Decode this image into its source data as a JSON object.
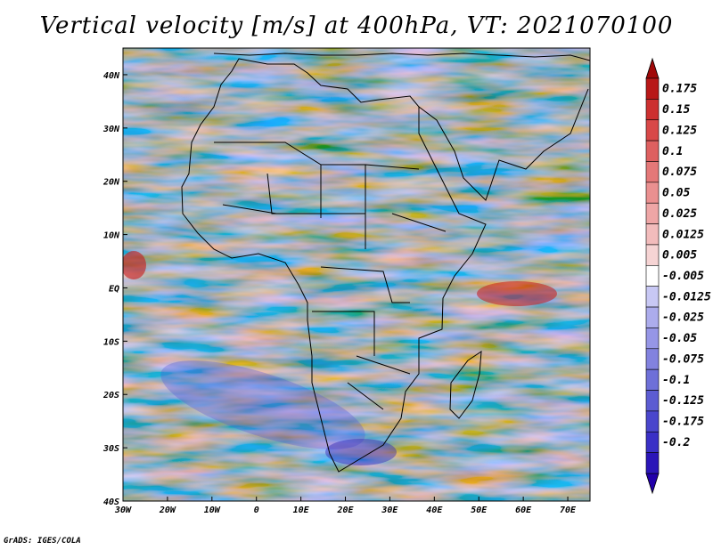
{
  "title": "Vertical velocity [m/s] at 400hPa, VT: 2021070100",
  "credit": "GrADS: IGES/COLA",
  "map": {
    "lon_range": [
      -30,
      75
    ],
    "lat_range": [
      -40,
      45
    ],
    "lon_ticks": [
      {
        "value": -30,
        "label": "30W"
      },
      {
        "value": -20,
        "label": "20W"
      },
      {
        "value": -10,
        "label": "10W"
      },
      {
        "value": 0,
        "label": "0"
      },
      {
        "value": 10,
        "label": "10E"
      },
      {
        "value": 20,
        "label": "20E"
      },
      {
        "value": 30,
        "label": "30E"
      },
      {
        "value": 40,
        "label": "40E"
      },
      {
        "value": 50,
        "label": "50E"
      },
      {
        "value": 60,
        "label": "60E"
      },
      {
        "value": 70,
        "label": "70E"
      }
    ],
    "lat_ticks": [
      {
        "value": 40,
        "label": "40N"
      },
      {
        "value": 30,
        "label": "30N"
      },
      {
        "value": 20,
        "label": "20N"
      },
      {
        "value": 10,
        "label": "10N"
      },
      {
        "value": 0,
        "label": "EQ"
      },
      {
        "value": -10,
        "label": "10S"
      },
      {
        "value": -20,
        "label": "20S"
      },
      {
        "value": -30,
        "label": "30S"
      },
      {
        "value": -40,
        "label": "40S"
      }
    ]
  },
  "colorbar": {
    "colors": [
      "#2200aa",
      "#2b16b8",
      "#3a30c6",
      "#4a46cc",
      "#5c5cd2",
      "#6e70d8",
      "#8282df",
      "#9696e6",
      "#acacec",
      "#c8c8f4",
      "#ffffff",
      "#f6d4d4",
      "#f2bcbc",
      "#eea6a6",
      "#ea9090",
      "#e47878",
      "#de6060",
      "#d84848",
      "#cc3030",
      "#b81818",
      "#a00808"
    ],
    "labels": [
      "-0.2",
      "-0.175",
      "-0.125",
      "-0.1",
      "-0.075",
      "-0.05",
      "-0.025",
      "-0.0125",
      "-0.005",
      "0.005",
      "0.0125",
      "0.025",
      "0.05",
      "0.075",
      "0.1",
      "0.125",
      "0.15",
      "0.175"
    ]
  }
}
